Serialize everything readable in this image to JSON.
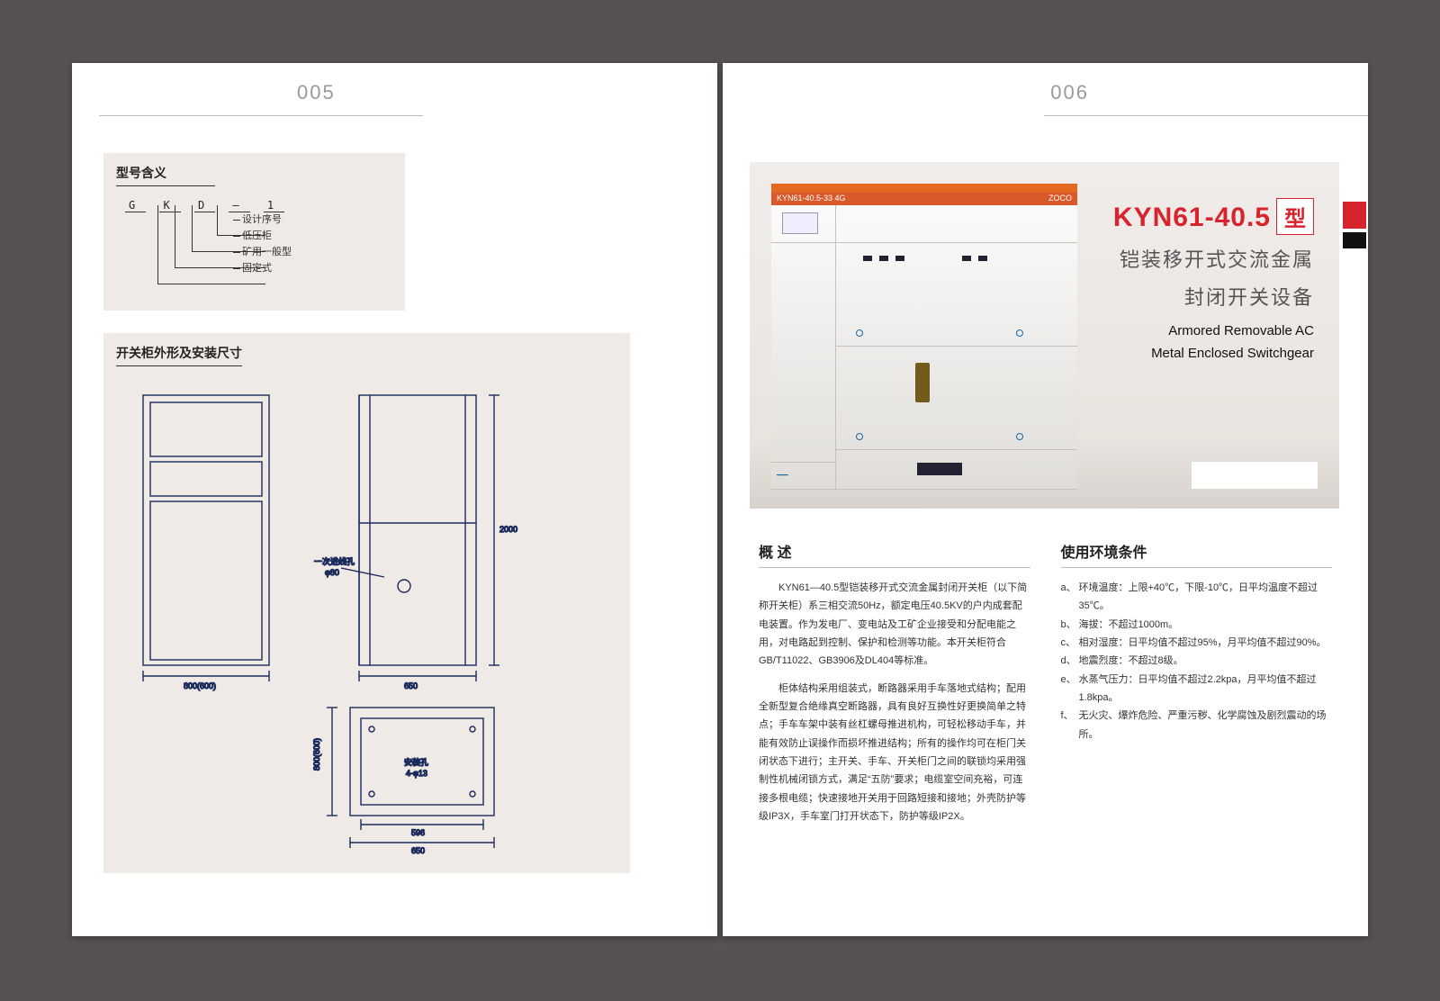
{
  "pages": {
    "left_num": "005",
    "right_num": "006"
  },
  "colors": {
    "bg": "#575153",
    "panel": "#efeae6",
    "accent_red": "#d7232e",
    "accent_orange": "#e2691f",
    "line": "#1a2a5c"
  },
  "left": {
    "model_meaning": {
      "title": "型号含义",
      "code_parts": [
        "G",
        "K",
        "D",
        "–",
        "1"
      ],
      "labels": [
        "设计序号",
        "低压柜",
        "矿用一般型",
        "固定式"
      ]
    },
    "dimensions": {
      "title": "开关柜外形及安装尺寸",
      "front": {
        "width_label": "800(600)"
      },
      "side": {
        "width_label": "650",
        "height_label": "2000",
        "note": "一次进线孔",
        "note_sub": "φ80"
      },
      "plan": {
        "width_label": "650",
        "inner_w": "596",
        "depth_label": "800(600)",
        "hole_note": "安装孔",
        "hole_sub": "4-φ13"
      }
    }
  },
  "right": {
    "product": {
      "cabinet_strip": "KYN61-40.5-33  4G",
      "brand": "ZOCO",
      "title_main": "KYN61-40.5",
      "title_suffix": "型",
      "subtitle_cn_l1": "铠装移开式交流金属",
      "subtitle_cn_l2": "封闭开关设备",
      "subtitle_en_l1": "Armored Removable AC",
      "subtitle_en_l2": "Metal Enclosed Switchgear"
    },
    "overview": {
      "heading": "概 述",
      "p1": "KYN61—40.5型铠装移开式交流金属封闭开关柜（以下简称开关柜）系三相交流50Hz，额定电压40.5KV的户内成套配电装置。作为发电厂、变电站及工矿企业接受和分配电能之用，对电路起到控制、保护和检测等功能。本开关柜符合GB/T11022、GB3906及DL404等标准。",
      "p2": "柜体结构采用组装式，断路器采用手车落地式结构；配用全新型复合绝缘真空断路器，具有良好互换性好更换简单之特点；手车车架中装有丝杠螺母推进机构，可轻松移动手车，并能有效防止误操作而损坏推进结构；所有的操作均可在柜门关闭状态下进行；主开关、手车、开关柜门之间的联锁均采用强制性机械闭锁方式，满足“五防”要求；电缆室空间充裕，可连接多根电缆；快速接地开关用于回路短接和接地；外壳防护等级IP3X，手车室门打开状态下，防护等级IP2X。"
    },
    "environment": {
      "heading": "使用环境条件",
      "items": [
        {
          "k": "a、",
          "t": "环境温度：上限+40℃，下限-10℃，日平均温度不超过35℃。"
        },
        {
          "k": "b、",
          "t": "海拔：不超过1000m。"
        },
        {
          "k": "c、",
          "t": "相对湿度：日平均值不超过95%，月平均值不超过90%。"
        },
        {
          "k": "d、",
          "t": "地震烈度：不超过8级。"
        },
        {
          "k": "e、",
          "t": "水蒸气压力：日平均值不超过2.2kpa，月平均值不超过1.8kpa。"
        },
        {
          "k": "f、",
          "t": "无火灾、爆炸危险、严重污秽、化学腐蚀及剧烈震动的场所。"
        }
      ]
    }
  }
}
